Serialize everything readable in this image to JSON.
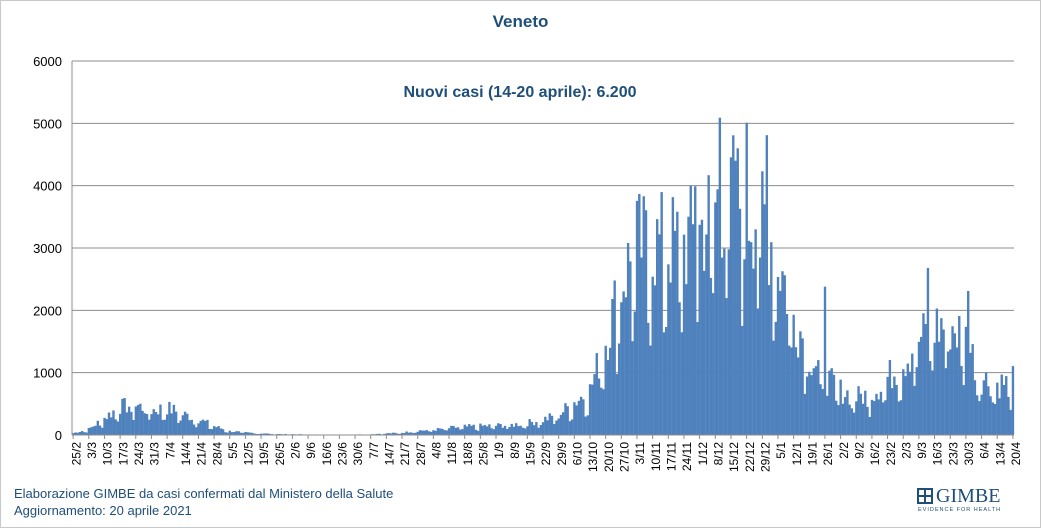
{
  "chart_data": {
    "type": "bar",
    "title": "Veneto",
    "annotation": "Nuovi casi (14-20 aprile): 6.200",
    "ylim": [
      0,
      6000
    ],
    "yticks": [
      0,
      1000,
      2000,
      3000,
      4000,
      5000,
      6000
    ],
    "grid": true,
    "legend": "none",
    "bar_color": "#4f81bd",
    "x_start": "2020-02-25",
    "x_end": "2021-04-20",
    "tick_labels": [
      "25/2",
      "3/3",
      "10/3",
      "17/3",
      "24/3",
      "31/3",
      "7/4",
      "14/4",
      "21/4",
      "28/4",
      "5/5",
      "12/5",
      "19/5",
      "26/5",
      "2/6",
      "9/6",
      "16/6",
      "23/6",
      "30/6",
      "7/7",
      "14/7",
      "21/7",
      "28/7",
      "4/8",
      "11/8",
      "18/8",
      "25/8",
      "1/9",
      "8/9",
      "15/9",
      "22/9",
      "29/9",
      "6/10",
      "13/10",
      "20/10",
      "27/10",
      "3/11",
      "10/11",
      "17/11",
      "24/11",
      "1/12",
      "8/12",
      "15/12",
      "22/12",
      "29/12",
      "5/1",
      "12/1",
      "19/1",
      "26/1",
      "2/2",
      "9/2",
      "16/2",
      "23/2",
      "2/3",
      "9/3",
      "16/3",
      "23/3",
      "30/3",
      "6/4",
      "13/4",
      "20/4"
    ],
    "weekly_values": [
      30,
      90,
      270,
      450,
      470,
      390,
      430,
      330,
      250,
      140,
      60,
      40,
      25,
      15,
      12,
      8,
      6,
      5,
      8,
      12,
      25,
      35,
      70,
      80,
      110,
      130,
      140,
      150,
      160,
      190,
      240,
      320,
      520,
      700,
      1500,
      2400,
      3000,
      3000,
      3000,
      3000,
      3200,
      3600,
      3800,
      3600,
      3500,
      2800,
      1900,
      1300,
      900,
      700,
      600,
      650,
      900,
      1150,
      1500,
      1700,
      1750,
      1500,
      900,
      800,
      850
    ],
    "peaks": [
      {
        "date": "2020-12-10",
        "value": 5090
      },
      {
        "date": "2020-12-17",
        "value": 4400
      },
      {
        "date": "2020-12-22",
        "value": 5010
      },
      {
        "date": "2020-12-31",
        "value": 4810
      },
      {
        "date": "2020-11-29",
        "value": 3990
      },
      {
        "date": "2020-11-06",
        "value": 3830
      },
      {
        "date": "2021-01-26",
        "value": 2380
      },
      {
        "date": "2021-03-13",
        "value": 2680
      },
      {
        "date": "2021-03-31",
        "value": 2310
      }
    ]
  },
  "footer": {
    "line1_a": "Elaborazione GIMBE",
    "line1_b": " da casi confermati dal Ministero della Salute",
    "line2": "Aggiornamento: 20 aprile 2021"
  },
  "logo": {
    "name": "GIMBE",
    "tagline": "EVIDENCE FOR HEALTH"
  }
}
